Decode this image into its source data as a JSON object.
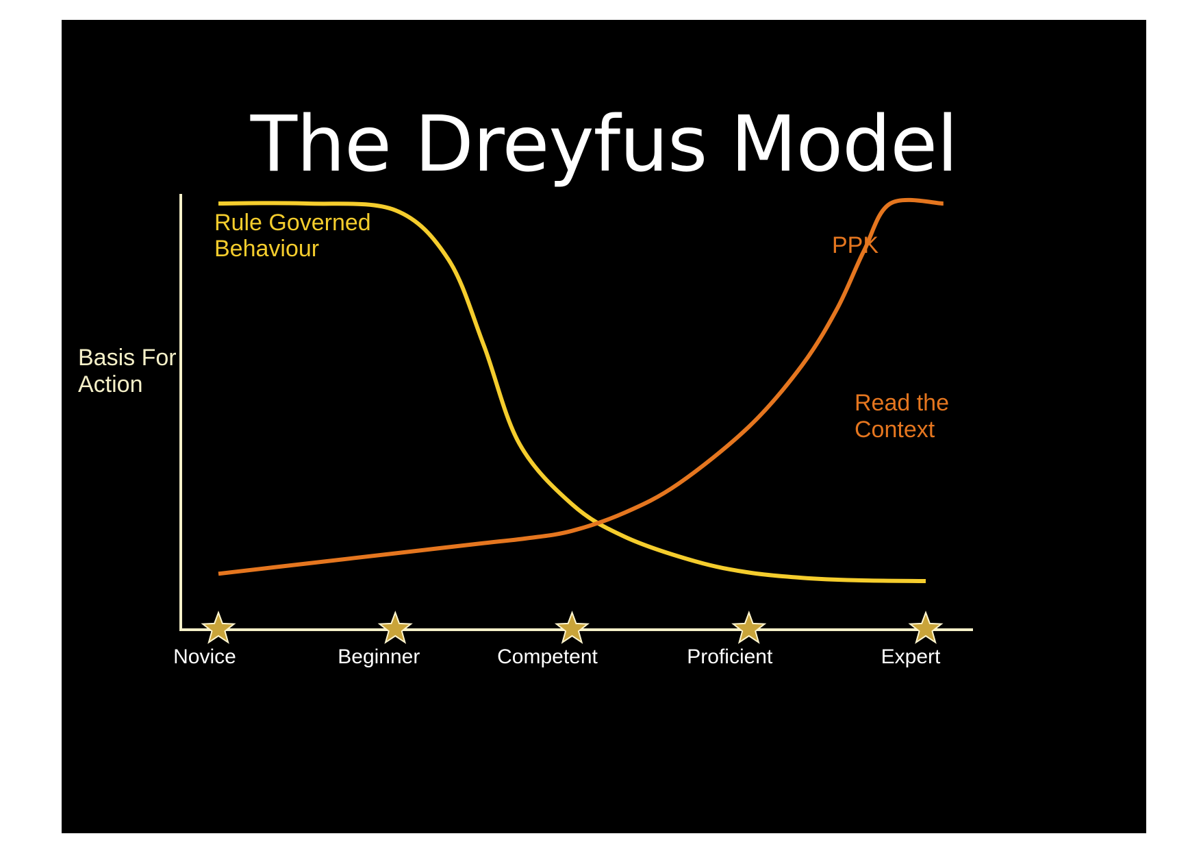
{
  "slide": {
    "title": "The Dreyfus Model"
  },
  "chart_data": {
    "type": "line",
    "title": "The Dreyfus Model",
    "ylabel_lines": [
      "Basis For",
      "Action"
    ],
    "xlabel": "",
    "categories": [
      "Novice",
      "Beginner",
      "Competent",
      "Proficient",
      "Expert"
    ],
    "x_range": [
      0,
      4
    ],
    "y_range": [
      0,
      100
    ],
    "grid": false,
    "series": [
      {
        "name": "Rule Governed Behaviour",
        "label_lines": [
          "Rule Governed",
          "Behaviour"
        ],
        "color": "#f5cd2d",
        "x": [
          0,
          0.5,
          1.0,
          1.3,
          1.5,
          1.7,
          2.0,
          2.3,
          2.7,
          3.0,
          3.3,
          3.6,
          4.0
        ],
        "values": [
          100,
          99.5,
          96,
          84,
          63,
          39,
          24,
          16,
          10,
          7.3,
          6,
          5.4,
          5.2
        ]
      },
      {
        "name": "Read the Context",
        "label_lines": [
          "Read the",
          "Context"
        ],
        "color": "#e5761f",
        "x": [
          0,
          0.5,
          1.0,
          1.5,
          1.75,
          2.0,
          2.3,
          2.6,
          3.0,
          3.3,
          3.5,
          3.65,
          3.8,
          4.1
        ],
        "values": [
          7,
          9.5,
          12,
          14.5,
          15.7,
          17.5,
          22,
          29,
          43,
          58,
          72,
          86,
          98,
          120
        ]
      }
    ],
    "annotations": [
      {
        "text": "PPK",
        "color": "#e5761f"
      }
    ],
    "markers": {
      "shape": "star",
      "color": "#c9a43a",
      "at_categories": [
        "Novice",
        "Beginner",
        "Competent",
        "Proficient",
        "Expert"
      ]
    },
    "axis_color": "#f5f0c8"
  }
}
